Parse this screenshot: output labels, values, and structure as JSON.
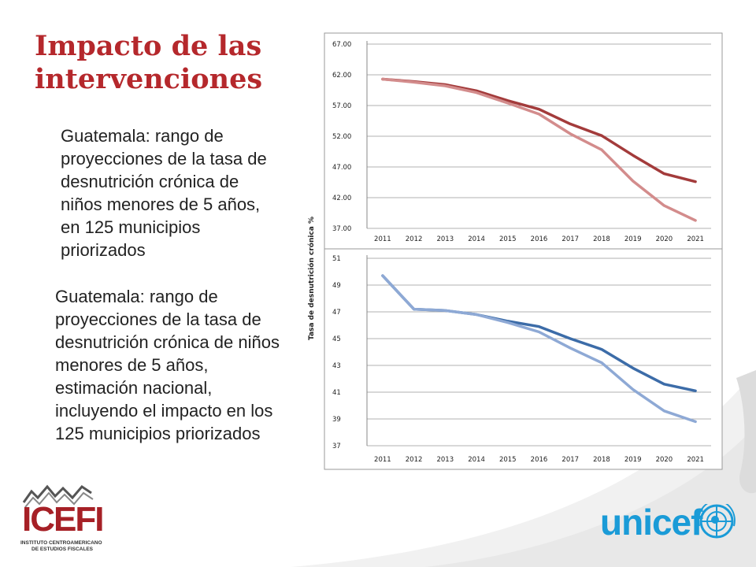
{
  "slide": {
    "title": "Impacto de las intervenciones",
    "description_top": "Guatemala: rango de proyecciones de la tasa de desnutrición crónica de niños menores de 5 años, en 125 municipios priorizados",
    "description_bottom": "Guatemala: rango de proyecciones de la tasa de desnutrición crónica de niños menores de 5 años, estimación nacional, incluyendo el impacto en los 125 municipios priorizados",
    "y_axis_label": "Tasa de desnutrición crónica %",
    "title_color": "#b5282c"
  },
  "logos": {
    "icefi_text": "ICEFI",
    "icefi_subtitle_line1": "INSTITUTO CENTROAMERICANO",
    "icefi_subtitle_line2": "DE ESTUDIOS FISCALES",
    "unicef_text": "unicef"
  },
  "chart_data": [
    {
      "type": "line",
      "x": [
        "2011",
        "2012",
        "2013",
        "2014",
        "2015",
        "2016",
        "2017",
        "2018",
        "2019",
        "2020",
        "2021"
      ],
      "yticks": [
        "37.00",
        "42.00",
        "47.00",
        "52.00",
        "57.00",
        "62.00",
        "67.00"
      ],
      "ylim": [
        37,
        67
      ],
      "grid": true,
      "series": [
        {
          "color": "#a33b3b",
          "values": [
            61.3,
            60.9,
            60.4,
            59.4,
            57.8,
            56.4,
            54.0,
            52.1,
            48.9,
            45.9,
            44.6
          ]
        },
        {
          "color": "#d38c8c",
          "values": [
            61.3,
            60.8,
            60.2,
            59.1,
            57.4,
            55.6,
            52.4,
            49.8,
            44.7,
            40.7,
            38.3
          ]
        }
      ]
    },
    {
      "type": "line",
      "x": [
        "2011",
        "2012",
        "2013",
        "2014",
        "2015",
        "2016",
        "2017",
        "2018",
        "2019",
        "2020",
        "2021"
      ],
      "yticks": [
        "37",
        "39",
        "41",
        "43",
        "45",
        "47",
        "49",
        "51"
      ],
      "ylim": [
        37,
        51
      ],
      "grid": true,
      "series": [
        {
          "color": "#3c6ca8",
          "values": [
            49.7,
            47.2,
            47.1,
            46.8,
            46.3,
            45.9,
            45.0,
            44.2,
            42.8,
            41.6,
            41.1
          ]
        },
        {
          "color": "#8ea9d5",
          "values": [
            49.7,
            47.2,
            47.1,
            46.8,
            46.2,
            45.5,
            44.3,
            43.2,
            41.2,
            39.6,
            38.8
          ]
        }
      ]
    }
  ]
}
